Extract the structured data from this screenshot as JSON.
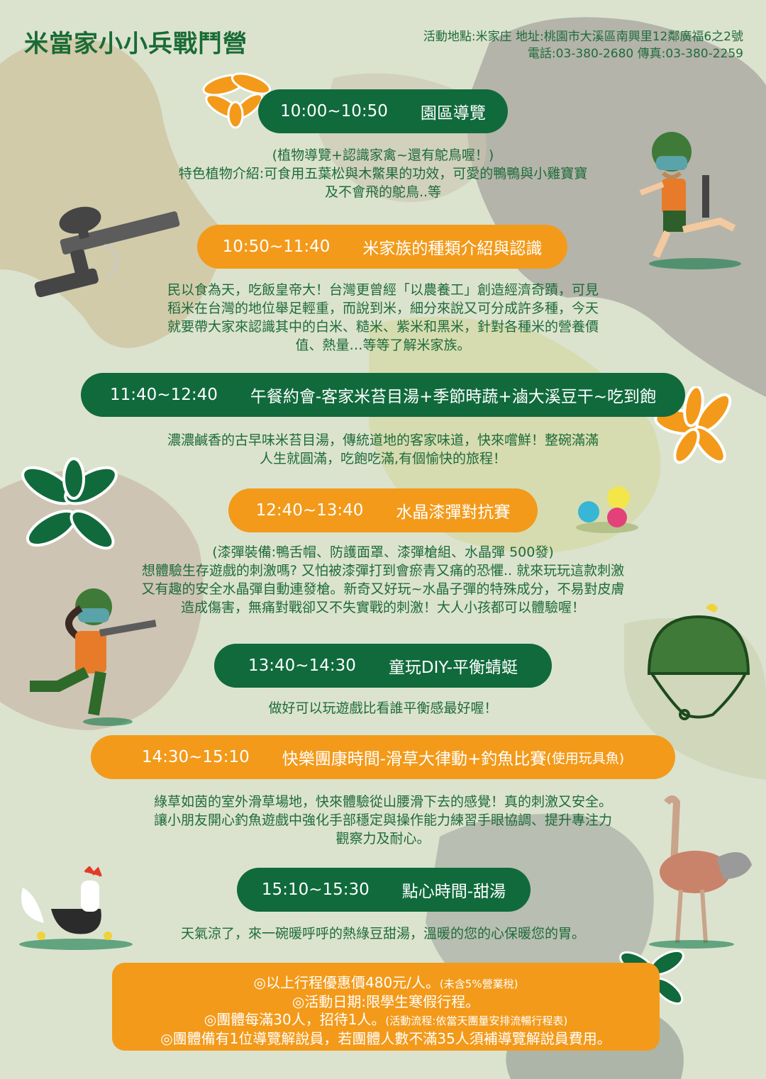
{
  "header": {
    "title": "米當家小小兵戰鬥營",
    "location": "活動地點:米家庄  地址:桃園市大溪區南興里12鄰廣福6之2號",
    "phone_fax": "電話:03-380-2680    傳真:03-380-2259"
  },
  "schedule": [
    {
      "time": "10:00~10:50",
      "title": "園區導覽",
      "lines": [
        "(植物導覽+認識家禽~還有鴕鳥喔！)",
        "特色植物介紹:可食用五葉松與木鱉果的功效，可愛的鴨鴨與小雞寶寶",
        "及不會飛的鴕鳥..等"
      ]
    },
    {
      "time": "10:50~11:40",
      "title": "米家族的種類介紹與認識",
      "lines": [
        "民以食為天，吃飯皇帝大！台灣更曾經「以農養工」創造經濟奇蹟，可見",
        "稻米在台灣的地位舉足輕重，而說到米，細分來說又可分成許多種，今天",
        "就要帶大家來認識其中的白米、糙米、紫米和黑米，針對各種米的營養價",
        "值、熱量…等等了解米家族。"
      ]
    },
    {
      "time": "11:40~12:40",
      "title": "午餐約會-客家米苔目湯+季節時蔬+滷大溪豆干~吃到飽",
      "lines": [
        "濃濃鹹香的古早味米苔目湯，傳統道地的客家味道，快來嚐鮮！整碗滿滿",
        "人生就圓滿，吃飽吃滿,有個愉快的旅程！"
      ]
    },
    {
      "time": "12:40~13:40",
      "title": "水晶漆彈對抗賽",
      "lines": [
        "(漆彈裝備:鴨舌帽、防護面罩、漆彈槍組、水晶彈 500發)",
        "想體驗生存遊戲的刺激嗎? 又怕被漆彈打到會瘀青又痛的恐懼.. 就來玩玩這款刺激",
        "又有趣的安全水晶彈自動連發槍。新奇又好玩~水晶子彈的特殊成分，不易對皮膚",
        "造成傷害，無痛對戰卻又不失實戰的刺激！大人小孩都可以體驗喔！"
      ]
    },
    {
      "time": "13:40~14:30",
      "title": "童玩DIY-平衡蜻蜓",
      "lines": [
        "做好可以玩遊戲比看誰平衡感最好喔！"
      ]
    },
    {
      "time": "14:30~15:10",
      "title": "快樂團康時間-滑草大律動+釣魚比賽",
      "title_note": "(使用玩具魚)",
      "lines": [
        "綠草如茵的室外滑草場地，快來體驗從山腰滑下去的感覺！真的刺激又安全。",
        "讓小朋友開心釣魚遊戲中強化手部穩定與操作能力練習手眼協調、提升專注力",
        "觀察力及耐心。"
      ]
    },
    {
      "time": "15:10~15:30",
      "title": "點心時間-甜湯",
      "lines": [
        "天氣涼了，來一碗暖呼呼的熱綠豆甜湯，溫暖的您的心保暖您的胃。"
      ]
    }
  ],
  "notes": {
    "line1": "◎以上行程優惠價480元/人。",
    "line1_small": "(未含5%營業稅)",
    "line2": "◎活動日期:限學生寒假行程。",
    "line3": "◎團體每滿30人，招待1人。",
    "line3_small": "(活動流程:依當天團量安排流暢行程表)",
    "line4": "◎團體備有1位導覽解說員，若團體人數不滿35人須補導覽解說員費用。"
  },
  "colors": {
    "background": "#dbe3cf",
    "green": "#106a3c",
    "orange": "#f39a1a",
    "text": "#1f6b3a"
  },
  "icons": [
    "flower-icon",
    "paintball-gun-icon",
    "soldier-kid-icon",
    "leaf-flower-icon",
    "paintball-balls-icon",
    "helmet-icon",
    "chick-icon",
    "rooster-icon",
    "ostrich-icon"
  ]
}
